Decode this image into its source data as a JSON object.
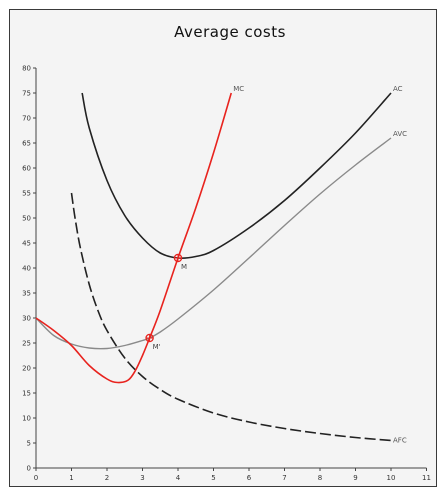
{
  "chart_data": {
    "type": "line",
    "title": "Average costs",
    "xlabel": "",
    "ylabel": "",
    "xlim": [
      0,
      11
    ],
    "ylim": [
      0,
      80
    ],
    "x_ticks": [
      0,
      1,
      2,
      3,
      4,
      5,
      6,
      7,
      8,
      9,
      10,
      11
    ],
    "y_ticks": [
      0,
      5,
      10,
      15,
      20,
      25,
      30,
      35,
      40,
      45,
      50,
      55,
      60,
      65,
      70,
      75,
      80
    ],
    "grid": false,
    "series": [
      {
        "name": "MC",
        "color": "#e8231e",
        "dash": "solid",
        "points": [
          [
            0,
            30
          ],
          [
            0.5,
            27.5
          ],
          [
            1,
            24.5
          ],
          [
            1.5,
            20.5
          ],
          [
            2,
            17.8
          ],
          [
            2.3,
            17.1
          ],
          [
            2.6,
            17.6
          ],
          [
            2.8,
            19.5
          ],
          [
            3,
            22.5
          ],
          [
            3.2,
            26
          ],
          [
            3.5,
            31.5
          ],
          [
            4,
            42
          ],
          [
            4.5,
            52
          ],
          [
            5,
            63
          ],
          [
            5.5,
            75
          ]
        ]
      },
      {
        "name": "AC",
        "color": "#222222",
        "dash": "solid",
        "points": [
          [
            1.3,
            75
          ],
          [
            1.5,
            68
          ],
          [
            2,
            57.5
          ],
          [
            2.5,
            50.5
          ],
          [
            3,
            46
          ],
          [
            3.5,
            43
          ],
          [
            4,
            42
          ],
          [
            4.5,
            42.3
          ],
          [
            5,
            43.5
          ],
          [
            6,
            48
          ],
          [
            7,
            53.5
          ],
          [
            8,
            60
          ],
          [
            9,
            67
          ],
          [
            10,
            75
          ]
        ]
      },
      {
        "name": "AVC",
        "color": "#8a8a8a",
        "dash": "solid",
        "points": [
          [
            0,
            30
          ],
          [
            0.5,
            26.5
          ],
          [
            1,
            24.8
          ],
          [
            1.5,
            24
          ],
          [
            2,
            23.9
          ],
          [
            2.5,
            24.5
          ],
          [
            3,
            25.5
          ],
          [
            3.2,
            26
          ],
          [
            3.5,
            27.2
          ],
          [
            4,
            29.8
          ],
          [
            5,
            35.6
          ],
          [
            6,
            42
          ],
          [
            7,
            48.5
          ],
          [
            8,
            54.8
          ],
          [
            9,
            60.6
          ],
          [
            10,
            66
          ]
        ]
      },
      {
        "name": "AFC",
        "color": "#222222",
        "dash": "dashed",
        "points": [
          [
            1,
            55
          ],
          [
            1.1,
            50
          ],
          [
            1.25,
            44
          ],
          [
            1.5,
            36.7
          ],
          [
            1.75,
            31.4
          ],
          [
            2,
            27.5
          ],
          [
            2.5,
            22
          ],
          [
            3,
            18.3
          ],
          [
            3.5,
            15.7
          ],
          [
            4,
            13.75
          ],
          [
            5,
            11
          ],
          [
            6,
            9.2
          ],
          [
            7,
            7.9
          ],
          [
            8,
            6.9
          ],
          [
            9,
            6.1
          ],
          [
            10,
            5.5
          ]
        ]
      }
    ],
    "annotations": [
      {
        "label": "M",
        "x": 4,
        "y": 42
      },
      {
        "label": "M'",
        "x": 3.2,
        "y": 26
      }
    ]
  }
}
